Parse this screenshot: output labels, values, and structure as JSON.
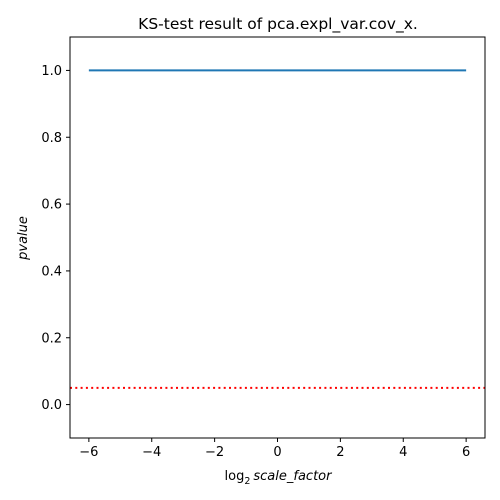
{
  "chart_data": {
    "type": "line",
    "title": "KS-test result of pca.expl_var.cov_x.",
    "xlabel": {
      "prefix": "log",
      "subscript": "2",
      "italic": "scale_factor"
    },
    "ylabel": "pvalue",
    "xlim": [
      -6.6,
      6.6
    ],
    "ylim": [
      -0.1,
      1.1
    ],
    "xticks": [
      -6,
      -4,
      -2,
      0,
      2,
      4,
      6
    ],
    "xtick_labels": [
      "−6",
      "−4",
      "−2",
      "0",
      "2",
      "4",
      "6"
    ],
    "yticks": [
      0.0,
      0.2,
      0.4,
      0.6,
      0.8,
      1.0
    ],
    "ytick_labels": [
      "0.0",
      "0.2",
      "0.4",
      "0.6",
      "0.8",
      "1.0"
    ],
    "grid": false,
    "series": [
      {
        "x": [
          -6,
          -5,
          -4,
          -3,
          -2,
          -1,
          0,
          1,
          2,
          3,
          4,
          5,
          6
        ],
        "values": [
          1.0,
          1.0,
          1.0,
          1.0,
          1.0,
          1.0,
          1.0,
          1.0,
          1.0,
          1.0,
          1.0,
          1.0,
          1.0
        ],
        "color": "#1f77b4",
        "style": "solid"
      }
    ],
    "reference_lines": [
      {
        "orientation": "horizontal",
        "y": 0.05,
        "color": "#ff0000",
        "style": "dotted"
      }
    ]
  }
}
